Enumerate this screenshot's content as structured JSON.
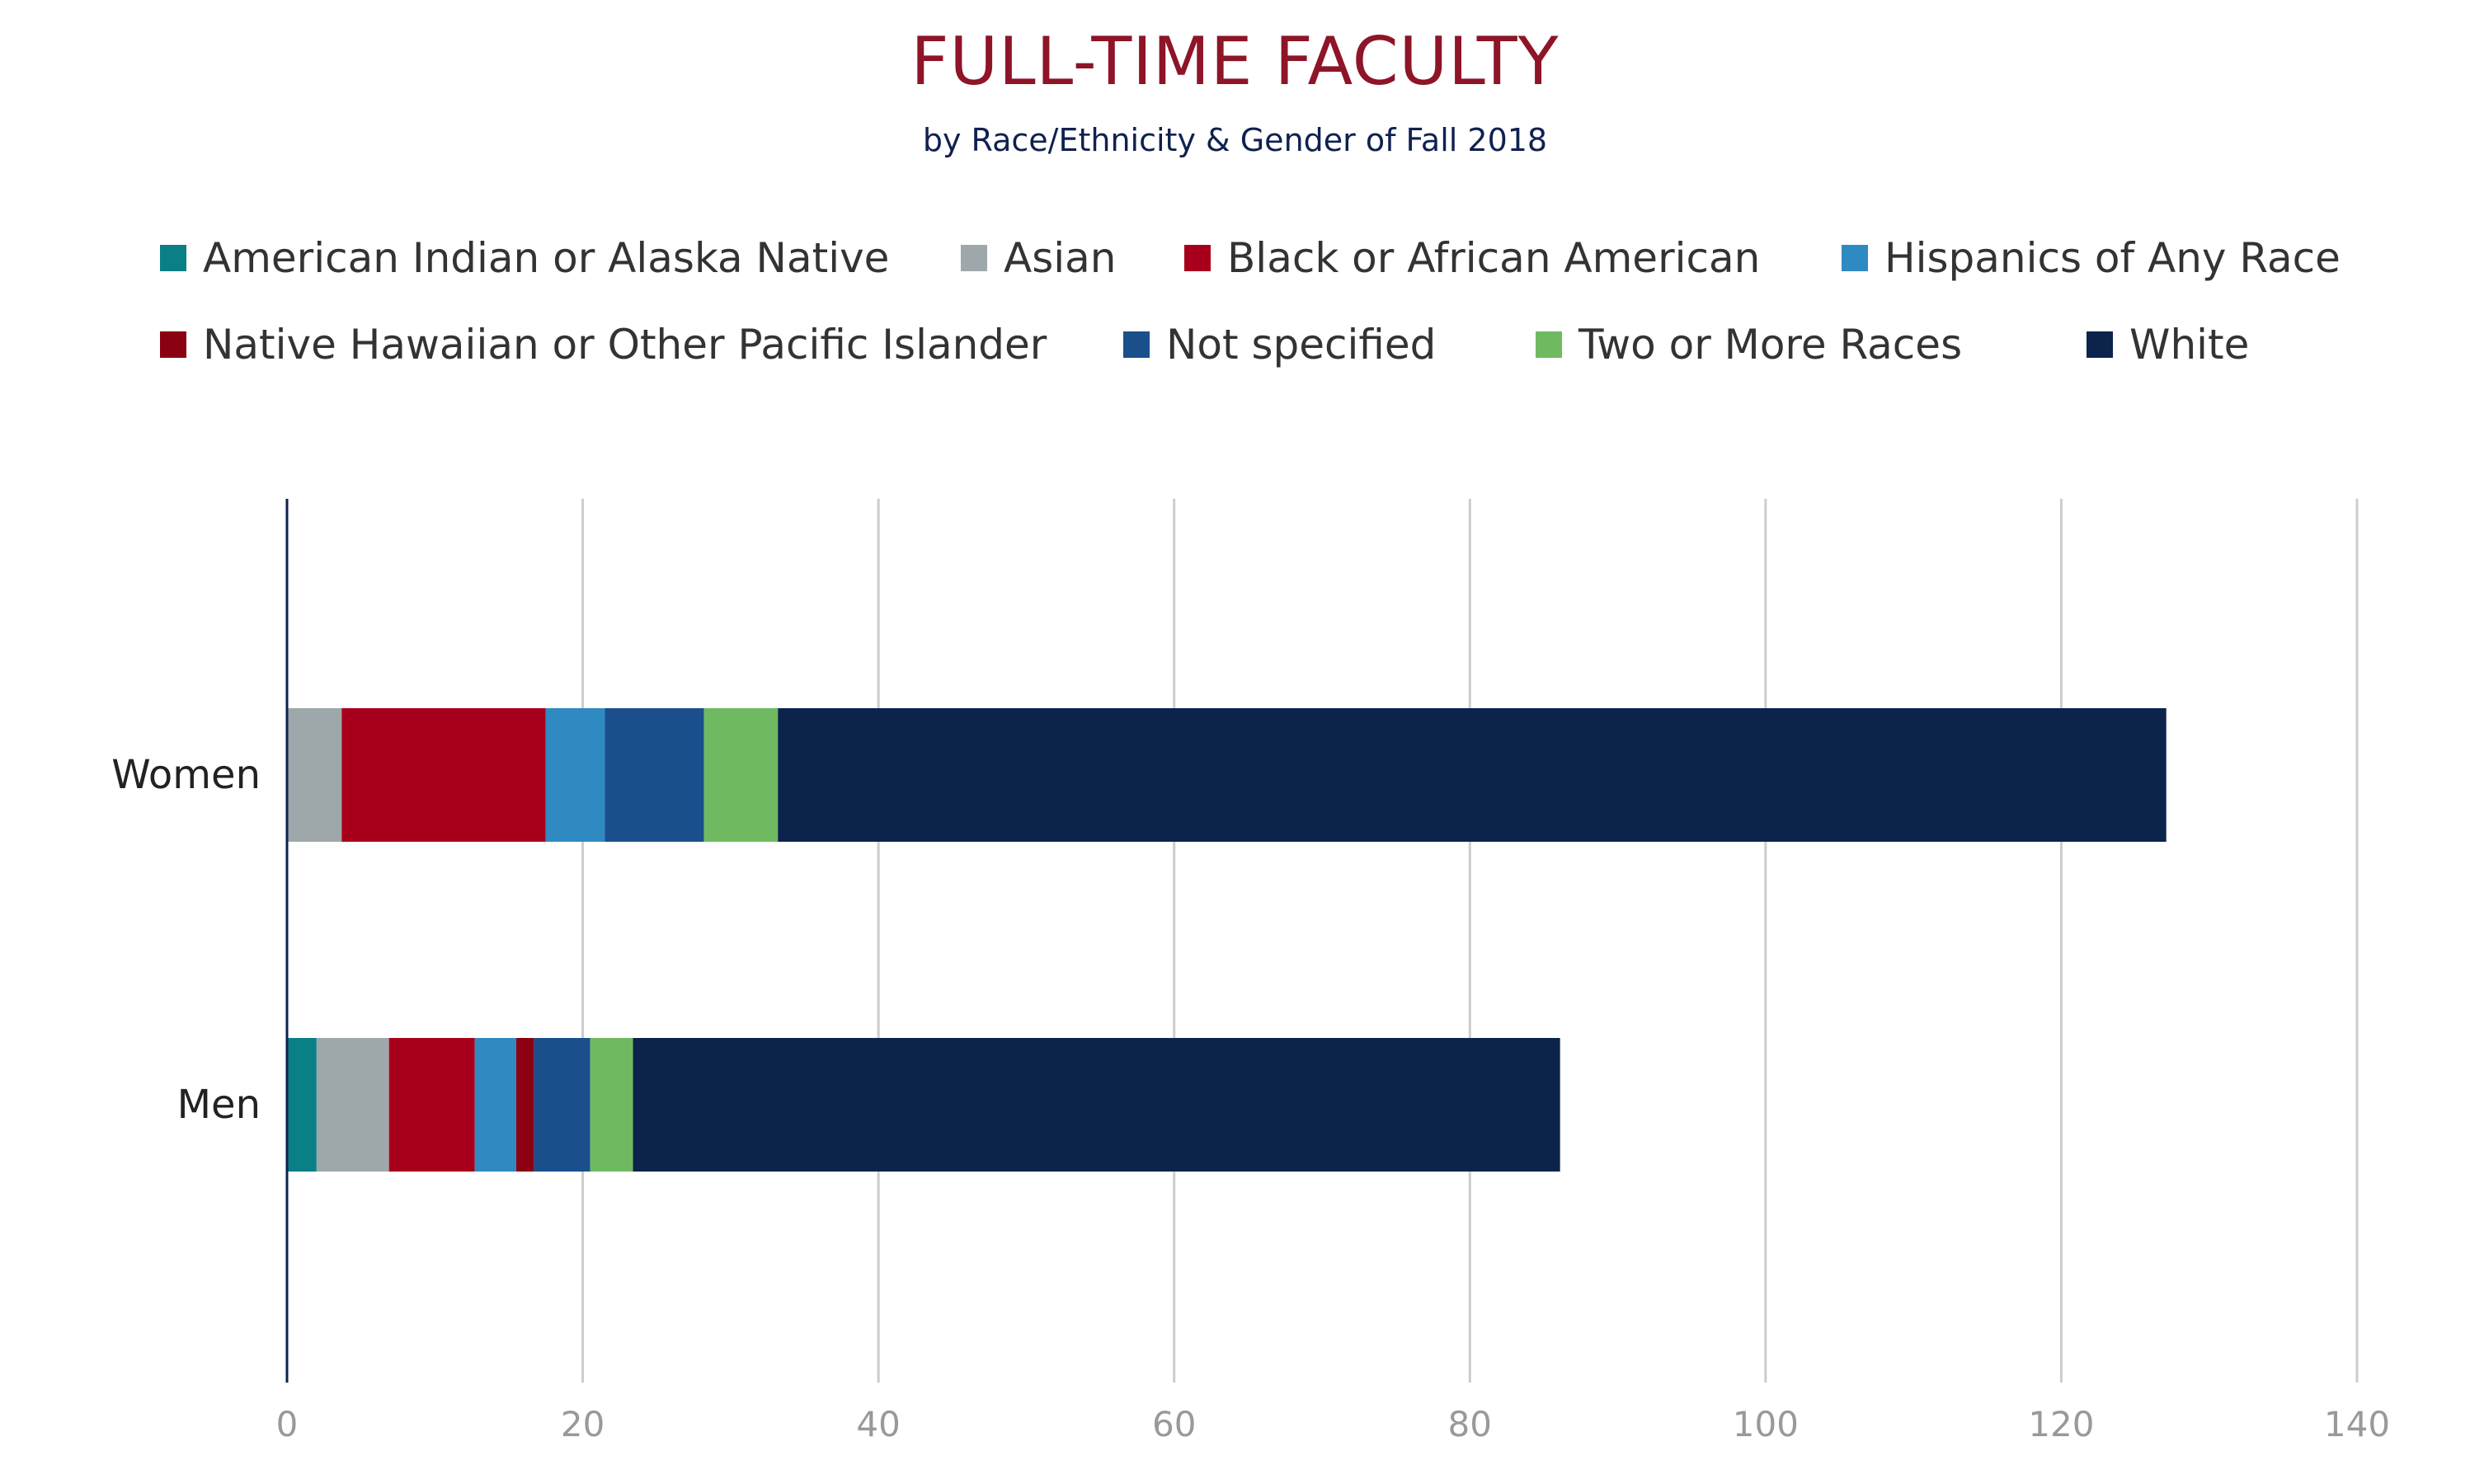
{
  "chart_data": {
    "type": "bar",
    "orientation": "horizontal",
    "stacked": true,
    "title": "FULL-TIME FACULTY",
    "subtitle": "by Race/Ethnicity & Gender of Fall 2018",
    "categories": [
      "Women",
      "Men"
    ],
    "series": [
      {
        "name": "American Indian or Alaska Native",
        "color": "#0a7f86",
        "values": [
          0,
          2
        ]
      },
      {
        "name": "Asian",
        "color": "#9ea8aa",
        "values": [
          3.7,
          4.9
        ]
      },
      {
        "name": "Black or African American",
        "color": "#a8001c",
        "values": [
          13.8,
          5.8
        ]
      },
      {
        "name": "Hispanics of Any Race",
        "color": "#2f8ac1",
        "values": [
          4,
          2.8
        ]
      },
      {
        "name": "Native Hawaiian or Other Pacific Islander",
        "color": "#8b0012",
        "values": [
          0,
          1.2
        ]
      },
      {
        "name": "Not specified",
        "color": "#1b4f8c",
        "values": [
          6.7,
          3.8
        ]
      },
      {
        "name": "Two or More Races",
        "color": "#6fba61",
        "values": [
          5,
          2.9
        ]
      },
      {
        "name": "White",
        "color": "#0c234b",
        "values": [
          93.9,
          62.7
        ]
      }
    ],
    "xlim": [
      0,
      140
    ],
    "xticks": [
      0,
      20,
      40,
      60,
      80,
      100,
      120,
      140
    ],
    "grid": true,
    "legend_position": "top"
  }
}
